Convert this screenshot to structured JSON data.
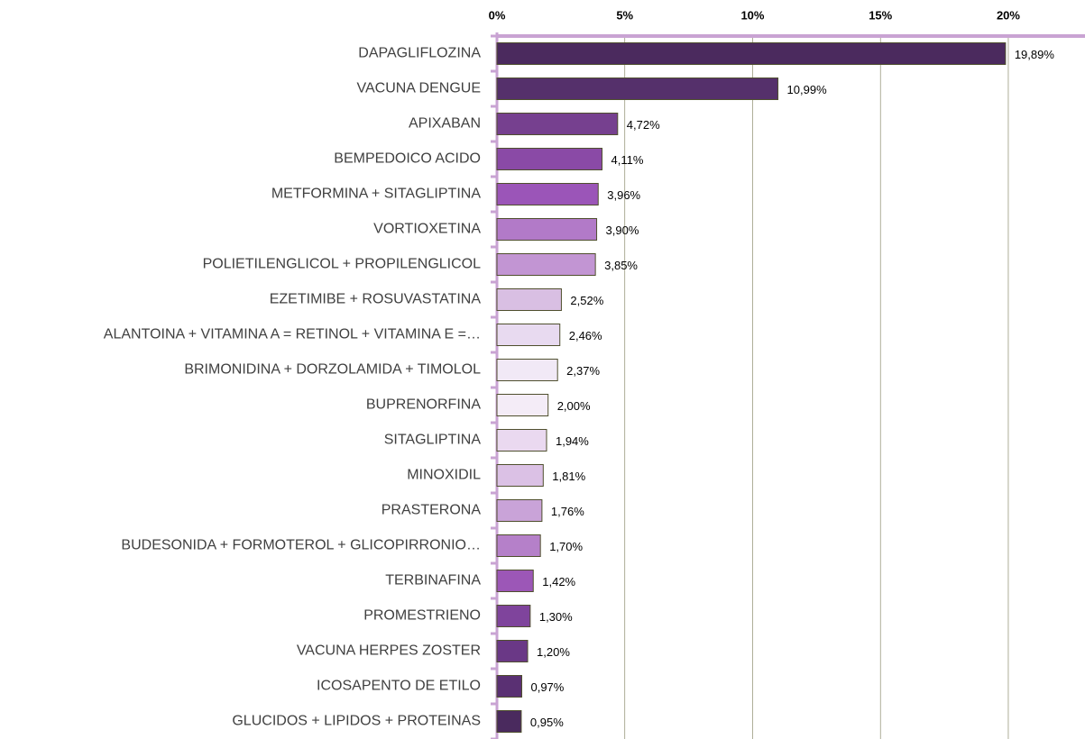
{
  "chart_data": {
    "type": "bar",
    "orientation": "horizontal",
    "categories": [
      "DAPAGLIFLOZINA",
      "VACUNA DENGUE",
      "APIXABAN",
      "BEMPEDOICO ACIDO",
      "METFORMINA + SITAGLIPTINA",
      "VORTIOXETINA",
      "POLIETILENGLICOL + PROPILENGLICOL",
      "EZETIMIBE + ROSUVASTATINA",
      "ALANTOINA + VITAMINA A = RETINOL + VITAMINA E =…",
      "BRIMONIDINA + DORZOLAMIDA + TIMOLOL",
      "BUPRENORFINA",
      "SITAGLIPTINA",
      "MINOXIDIL",
      "PRASTERONA",
      "BUDESONIDA + FORMOTEROL + GLICOPIRRONIO…",
      "TERBINAFINA",
      "PROMESTRIENO",
      "VACUNA HERPES ZOSTER",
      "ICOSAPENTO DE ETILO",
      "GLUCIDOS + LIPIDOS + PROTEINAS"
    ],
    "values": [
      19.89,
      10.99,
      4.72,
      4.11,
      3.96,
      3.9,
      3.85,
      2.52,
      2.46,
      2.37,
      2.0,
      1.94,
      1.81,
      1.76,
      1.7,
      1.42,
      1.3,
      1.2,
      0.97,
      0.95
    ],
    "value_labels": [
      "19,89%",
      "10,99%",
      "4,72%",
      "4,11%",
      "3,96%",
      "3,90%",
      "3,85%",
      "2,52%",
      "2,46%",
      "2,37%",
      "2,00%",
      "1,94%",
      "1,81%",
      "1,76%",
      "1,70%",
      "1,42%",
      "1,30%",
      "1,20%",
      "0,97%",
      "0,95%"
    ],
    "colors": [
      "#4b2a5e",
      "#55306b",
      "#76408f",
      "#8a4aa6",
      "#9b55b8",
      "#b27ac8",
      "#c295d3",
      "#d9bfe3",
      "#e8daf0",
      "#f1e9f6",
      "#f4ecf7",
      "#ead9f0",
      "#dbc1e5",
      "#c9a3d8",
      "#b580c9",
      "#9c57b7",
      "#7f449c",
      "#6a3886",
      "#5a3073",
      "#4a2a5e"
    ],
    "xlim": [
      0,
      23
    ],
    "xticks": [
      {
        "value": 0,
        "label": "0%"
      },
      {
        "value": 5,
        "label": "5%"
      },
      {
        "value": 10,
        "label": "10%"
      },
      {
        "value": 15,
        "label": "15%"
      },
      {
        "value": 20,
        "label": "20%"
      }
    ],
    "grid": true
  }
}
